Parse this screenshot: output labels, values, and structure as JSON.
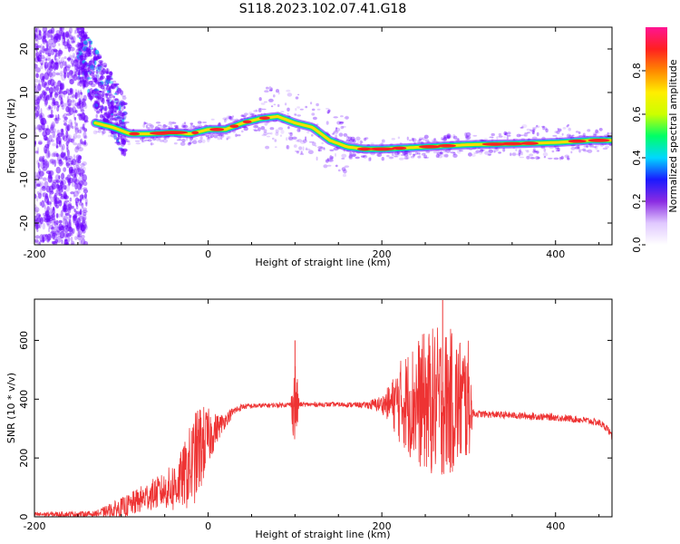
{
  "title": "S118.2023.102.07.41.G18",
  "colors": {
    "snr_line": "#ee3333",
    "ridge_core": "#ff2222",
    "ridge_inner": "#ffdd00",
    "ridge_mid": "#22ee55",
    "ridge_outer": "#00bbee",
    "speckle": "#6a00ff"
  },
  "chart_data": [
    {
      "type": "heatmap",
      "xlabel": "Height of straight line (km)",
      "ylabel": "Frequency (Hz)",
      "xlim": [
        -200,
        465
      ],
      "ylim": [
        -25,
        25
      ],
      "xticks": [
        -200,
        0,
        200,
        400
      ],
      "yticks": [
        -20,
        -10,
        0,
        10,
        20
      ],
      "grid": false,
      "colorbar": {
        "label": "Normalized spectral amplitude",
        "range": [
          0,
          1
        ],
        "ticks": [
          "0.0",
          "0.2",
          "0.4",
          "0.6",
          "0.8"
        ],
        "stops": [
          "#ffffff",
          "#e0c8ff",
          "#8a2be2",
          "#1a1aff",
          "#00d8ff",
          "#00ff66",
          "#ccff00",
          "#ffee00",
          "#ff8800",
          "#ff2020",
          "#ff1493"
        ]
      },
      "ridge": {
        "x": [
          -130,
          -110,
          -90,
          -70,
          -40,
          -20,
          0,
          20,
          40,
          60,
          80,
          100,
          120,
          140,
          160,
          180,
          200,
          250,
          300,
          350,
          400,
          440,
          465
        ],
        "frequency": [
          3,
          2,
          0.5,
          0.5,
          0.8,
          0.5,
          1.5,
          1.5,
          3,
          4,
          4.5,
          3,
          2,
          -1,
          -2.5,
          -3,
          -3,
          -2.5,
          -2,
          -1.8,
          -1.5,
          -1,
          -1
        ]
      }
    },
    {
      "type": "line",
      "xlabel": "Height of straight line (km)",
      "ylabel": "SNR (10 * v/v)",
      "xlim": [
        -200,
        465
      ],
      "ylim": [
        0,
        740
      ],
      "xticks": [
        -200,
        0,
        200,
        400
      ],
      "yticks": [
        0,
        200,
        400,
        600
      ],
      "grid": false,
      "envelope": {
        "x": [
          -200,
          -130,
          -110,
          -90,
          -70,
          -50,
          -40,
          -30,
          -20,
          -10,
          0,
          10,
          20,
          30,
          40,
          60,
          80,
          95,
          99,
          101,
          105,
          150,
          180,
          200,
          210,
          220,
          240,
          260,
          280,
          300,
          305,
          310,
          350,
          400,
          430,
          450,
          460,
          465
        ],
        "baseline": [
          8,
          10,
          20,
          40,
          70,
          90,
          100,
          130,
          170,
          230,
          270,
          300,
          330,
          360,
          375,
          378,
          380,
          382,
          382,
          382,
          382,
          382,
          380,
          383,
          385,
          390,
          390,
          390,
          390,
          390,
          352,
          350,
          345,
          338,
          330,
          320,
          300,
          270
        ],
        "noise": [
          8,
          10,
          30,
          40,
          50,
          60,
          90,
          100,
          150,
          160,
          100,
          50,
          25,
          15,
          10,
          8,
          8,
          8,
          150,
          150,
          8,
          8,
          10,
          30,
          70,
          140,
          220,
          260,
          250,
          210,
          15,
          12,
          12,
          12,
          12,
          12,
          12,
          12
        ]
      },
      "peaks": [
        {
          "x": 100,
          "y": 600
        },
        {
          "x": 270,
          "y": 737
        }
      ]
    }
  ]
}
